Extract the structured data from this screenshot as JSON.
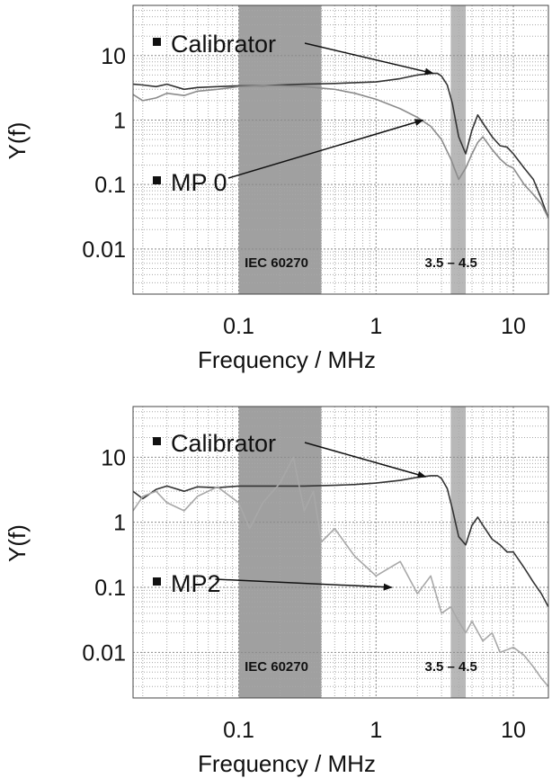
{
  "chart_data": [
    {
      "type": "line",
      "x_scale": "log",
      "y_scale": "log",
      "xlim": [
        0.017,
        18
      ],
      "ylim": [
        0.002,
        60
      ],
      "xlabel": "Frequency  / MHz",
      "ylabel": "Y(f)",
      "x_ticks": [
        0.1,
        1,
        10
      ],
      "x_tick_labels": [
        "0.1",
        "1",
        "10"
      ],
      "y_ticks": [
        0.01,
        0.1,
        1,
        10
      ],
      "y_tick_labels": [
        "0.01",
        "0.1",
        "1",
        "10"
      ],
      "grid": true,
      "bands": [
        {
          "label": "IEC 60270",
          "from": 0.1,
          "to": 0.4,
          "color": "#a0a0a0"
        },
        {
          "label": "3.5 – 4.5",
          "from": 3.5,
          "to": 4.5,
          "color": "#b8b8b8"
        }
      ],
      "series": [
        {
          "name": "Calibrator",
          "color": "#333333",
          "x": [
            0.017,
            0.02,
            0.025,
            0.03,
            0.04,
            0.05,
            0.07,
            0.1,
            0.15,
            0.2,
            0.3,
            0.5,
            0.7,
            1,
            1.5,
            2,
            2.5,
            2.8,
            3,
            3.3,
            3.6,
            4,
            4.5,
            5,
            5.5,
            6,
            7,
            8,
            9,
            10,
            12,
            14,
            16,
            18
          ],
          "y": [
            3.6,
            3.5,
            3.3,
            3.6,
            3.0,
            3.2,
            3.3,
            3.4,
            3.4,
            3.5,
            3.6,
            3.7,
            3.8,
            3.9,
            4.4,
            5.0,
            5.3,
            5.3,
            4.8,
            3.5,
            1.8,
            0.55,
            0.3,
            0.7,
            1.2,
            0.9,
            0.55,
            0.4,
            0.38,
            0.3,
            0.18,
            0.12,
            0.06,
            0.03
          ]
        },
        {
          "name": "MP 0",
          "color": "#8c8c8c",
          "x": [
            0.017,
            0.02,
            0.025,
            0.03,
            0.04,
            0.05,
            0.07,
            0.1,
            0.15,
            0.2,
            0.3,
            0.5,
            0.7,
            1,
            1.5,
            2,
            2.5,
            3,
            3.5,
            4,
            4.5,
            5,
            5.5,
            6,
            7,
            8,
            9,
            10,
            12,
            14,
            16,
            18
          ],
          "y": [
            2.5,
            2.0,
            2.2,
            2.6,
            2.4,
            2.8,
            3.0,
            3.3,
            3.4,
            3.4,
            3.3,
            3.0,
            2.6,
            2.1,
            1.5,
            1.1,
            0.8,
            0.5,
            0.25,
            0.12,
            0.18,
            0.3,
            0.45,
            0.55,
            0.35,
            0.25,
            0.2,
            0.18,
            0.1,
            0.07,
            0.05,
            0.03
          ]
        }
      ],
      "annotations": [
        {
          "text": "Calibrator",
          "series": "Calibrator",
          "arrow_to": [
            2.6,
            5.3
          ]
        },
        {
          "text": "MP 0",
          "series": "MP 0",
          "arrow_to": [
            2.2,
            1.0
          ]
        }
      ]
    },
    {
      "type": "line",
      "x_scale": "log",
      "y_scale": "log",
      "xlim": [
        0.017,
        18
      ],
      "ylim": [
        0.002,
        60
      ],
      "xlabel": "Frequency  / MHz",
      "ylabel": "Y(f)",
      "x_ticks": [
        0.1,
        1,
        10
      ],
      "x_tick_labels": [
        "0.1",
        "1",
        "10"
      ],
      "y_ticks": [
        0.01,
        0.1,
        1,
        10
      ],
      "y_tick_labels": [
        "0.01",
        "0.1",
        "1",
        "10"
      ],
      "grid": true,
      "bands": [
        {
          "label": "IEC 60270",
          "from": 0.1,
          "to": 0.4,
          "color": "#a0a0a0"
        },
        {
          "label": "3.5 – 4.5",
          "from": 3.5,
          "to": 4.5,
          "color": "#b8b8b8"
        }
      ],
      "series": [
        {
          "name": "Calibrator",
          "color": "#333333",
          "x": [
            0.017,
            0.02,
            0.025,
            0.03,
            0.04,
            0.05,
            0.07,
            0.1,
            0.15,
            0.2,
            0.3,
            0.5,
            0.7,
            1,
            1.5,
            2,
            2.5,
            2.8,
            3,
            3.3,
            3.6,
            4,
            4.5,
            5,
            5.5,
            6,
            7,
            8,
            9,
            10,
            12,
            14,
            16,
            18
          ],
          "y": [
            3.0,
            2.3,
            3.2,
            3.6,
            3.0,
            3.5,
            3.4,
            3.6,
            3.6,
            3.6,
            3.6,
            3.7,
            3.8,
            4.0,
            4.4,
            4.9,
            5.2,
            5.2,
            4.7,
            3.3,
            1.6,
            0.6,
            0.45,
            0.9,
            1.2,
            0.9,
            0.55,
            0.45,
            0.35,
            0.35,
            0.2,
            0.12,
            0.08,
            0.05
          ]
        },
        {
          "name": "MP2",
          "color": "#a8a8a8",
          "x": [
            0.017,
            0.02,
            0.025,
            0.03,
            0.04,
            0.05,
            0.07,
            0.1,
            0.12,
            0.15,
            0.2,
            0.25,
            0.3,
            0.35,
            0.4,
            0.5,
            0.7,
            1,
            1.5,
            2,
            2.5,
            3,
            3.5,
            4,
            4.5,
            5,
            6,
            7,
            8,
            10,
            12,
            14,
            16,
            18
          ],
          "y": [
            1.5,
            2.5,
            3.0,
            2.0,
            1.5,
            2.5,
            3.5,
            2.0,
            0.8,
            2.0,
            4.0,
            10.0,
            1.5,
            3.0,
            0.5,
            0.8,
            0.3,
            0.15,
            0.25,
            0.08,
            0.15,
            0.04,
            0.05,
            0.03,
            0.02,
            0.03,
            0.015,
            0.02,
            0.01,
            0.012,
            0.009,
            0.006,
            0.004,
            0.003
          ]
        }
      ],
      "annotations": [
        {
          "text": "Calibrator",
          "series": "Calibrator",
          "arrow_to": [
            2.3,
            5.0
          ]
        },
        {
          "text": "MP2",
          "series": "MP2",
          "arrow_to": [
            1.3,
            0.1
          ]
        }
      ]
    }
  ]
}
